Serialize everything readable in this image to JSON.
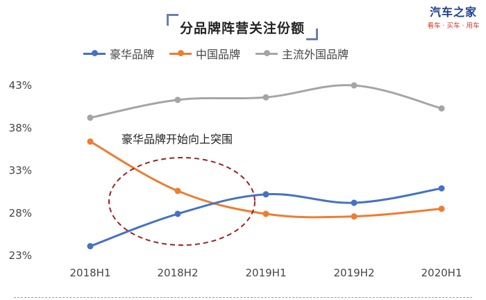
{
  "header": {
    "brand_name": "汽车之家",
    "brand_sub": "看车 · 买车 · 用车"
  },
  "chart_data": {
    "type": "line",
    "title": "分品牌阵营关注份额",
    "categories": [
      "2018H1",
      "2018H2",
      "2019H1",
      "2019H2",
      "2020H1"
    ],
    "y_ticks": [
      "43%",
      "38%",
      "33%",
      "28%",
      "23%"
    ],
    "ylim": [
      23,
      43
    ],
    "grid": false,
    "legend_position": "top",
    "series": [
      {
        "name": "豪华品牌",
        "color": "#4472c4",
        "values": [
          24.1,
          27.9,
          30.2,
          29.2,
          30.9
        ]
      },
      {
        "name": "中国品牌",
        "color": "#ed7d31",
        "values": [
          36.4,
          30.6,
          27.9,
          27.6,
          28.5
        ]
      },
      {
        "name": "主流外国品牌",
        "color": "#a5a5a5",
        "values": [
          39.2,
          41.3,
          41.6,
          43.0,
          40.3
        ]
      }
    ],
    "annotation": {
      "text": "豪华品牌开始向上突围",
      "color": "#a01f1f"
    }
  }
}
